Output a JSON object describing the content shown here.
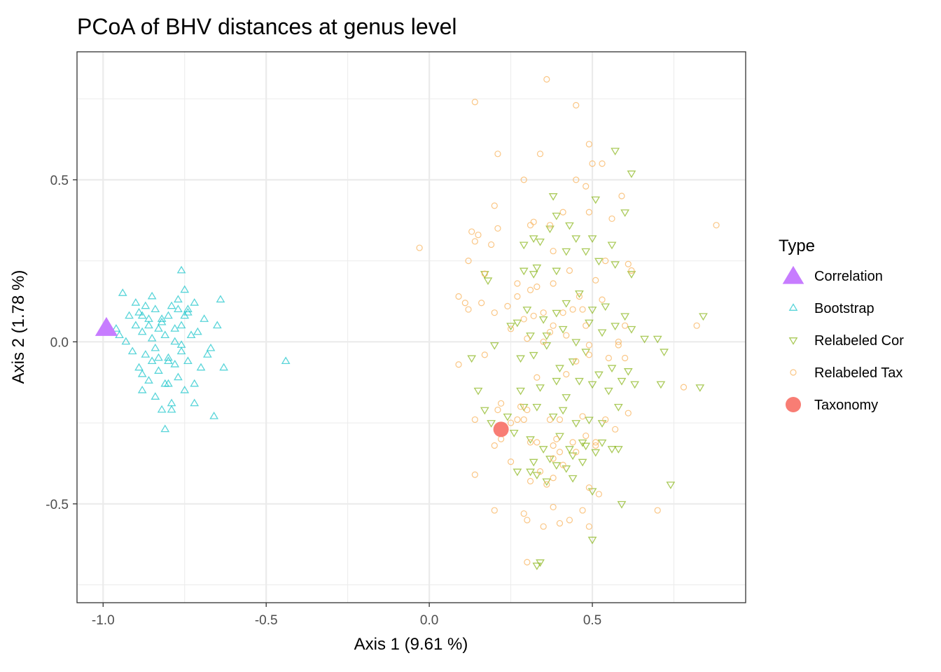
{
  "chart_data": {
    "type": "scatter",
    "title": "PCoA of BHV distances at genus level",
    "xlabel": "Axis 1 (9.61 %)",
    "ylabel": "Axis 2 (1.78 %)",
    "xlim": [
      -1.08,
      0.97
    ],
    "ylim": [
      -0.805,
      0.895
    ],
    "xticks": [
      -1.0,
      -0.5,
      0.0,
      0.5
    ],
    "xtick_labels": [
      "-1.0",
      "-0.5",
      "0.0",
      "0.5"
    ],
    "yticks": [
      -0.5,
      0.0,
      0.5
    ],
    "ytick_labels": [
      "-0.5",
      "0.0",
      "0.5"
    ],
    "grid": true,
    "legend": {
      "title": "Type",
      "position": "right"
    },
    "series": [
      {
        "name": "Correlation",
        "color": "#c77cff",
        "marker": "triangle-up-filled",
        "x": [
          -0.99
        ],
        "y": [
          0.04
        ]
      },
      {
        "name": "Bootstrap",
        "color": "#00bfc4",
        "marker": "triangle-up-open",
        "x": [
          -0.96,
          -0.95,
          -0.94,
          -0.93,
          -0.92,
          -0.91,
          -0.9,
          -0.9,
          -0.89,
          -0.89,
          -0.88,
          -0.88,
          -0.87,
          -0.87,
          -0.86,
          -0.86,
          -0.85,
          -0.85,
          -0.84,
          -0.84,
          -0.83,
          -0.83,
          -0.82,
          -0.82,
          -0.81,
          -0.81,
          -0.8,
          -0.8,
          -0.79,
          -0.79,
          -0.78,
          -0.78,
          -0.77,
          -0.77,
          -0.76,
          -0.76,
          -0.75,
          -0.75,
          -0.74,
          -0.74,
          -0.73,
          -0.72,
          -0.72,
          -0.71,
          -0.7,
          -0.69,
          -0.68,
          -0.67,
          -0.66,
          -0.65,
          -0.64,
          -0.63,
          -0.88,
          -0.86,
          -0.84,
          -0.82,
          -0.8,
          -0.78,
          -0.76,
          -0.74,
          -0.85,
          -0.8,
          -0.75,
          -0.72,
          -0.83,
          -0.79,
          -0.77,
          -0.88,
          -0.44,
          -0.76,
          -0.81
        ],
        "y": [
          0.04,
          0.02,
          0.15,
          0.0,
          0.08,
          -0.03,
          0.12,
          0.05,
          -0.08,
          0.09,
          -0.15,
          0.03,
          -0.04,
          0.11,
          -0.12,
          0.07,
          0.01,
          -0.06,
          0.1,
          -0.17,
          0.04,
          -0.09,
          0.06,
          -0.21,
          0.02,
          -0.13,
          0.08,
          -0.05,
          0.11,
          -0.19,
          0.0,
          -0.07,
          0.13,
          -0.11,
          0.05,
          -0.03,
          0.16,
          -0.15,
          0.09,
          -0.06,
          0.02,
          0.12,
          -0.13,
          0.03,
          -0.08,
          0.07,
          -0.04,
          -0.02,
          -0.23,
          0.05,
          0.13,
          -0.08,
          -0.1,
          0.05,
          -0.02,
          0.07,
          -0.06,
          0.04,
          -0.01,
          0.1,
          0.14,
          -0.13,
          0.08,
          -0.19,
          -0.05,
          -0.21,
          0.1,
          0.08,
          -0.06,
          0.22,
          -0.27
        ]
      },
      {
        "name": "Relabeled Cor",
        "color": "#7cae00",
        "marker": "triangle-down-open",
        "x": [
          0.57,
          0.62,
          0.51,
          0.38,
          0.6,
          0.43,
          0.39,
          0.37,
          0.32,
          0.45,
          0.5,
          0.56,
          0.29,
          0.34,
          0.17,
          0.18,
          0.29,
          0.33,
          0.32,
          0.39,
          0.42,
          0.48,
          0.52,
          0.57,
          0.62,
          0.27,
          0.3,
          0.35,
          0.39,
          0.42,
          0.46,
          0.5,
          0.54,
          0.6,
          0.66,
          0.72,
          0.84,
          0.25,
          0.31,
          0.36,
          0.41,
          0.45,
          0.49,
          0.53,
          0.57,
          0.62,
          0.7,
          0.13,
          0.2,
          0.28,
          0.32,
          0.36,
          0.4,
          0.44,
          0.48,
          0.52,
          0.56,
          0.61,
          0.15,
          0.28,
          0.34,
          0.39,
          0.42,
          0.46,
          0.5,
          0.55,
          0.59,
          0.63,
          0.71,
          0.83,
          0.17,
          0.24,
          0.29,
          0.33,
          0.38,
          0.41,
          0.45,
          0.49,
          0.53,
          0.58,
          0.19,
          0.26,
          0.31,
          0.35,
          0.4,
          0.43,
          0.47,
          0.51,
          0.56,
          0.32,
          0.37,
          0.42,
          0.47,
          0.27,
          0.33,
          0.39,
          0.44,
          0.48,
          0.53,
          0.58,
          0.31,
          0.36,
          0.44,
          0.5,
          0.59,
          0.74,
          0.34,
          0.5,
          0.33
        ],
        "y": [
          0.59,
          0.52,
          0.44,
          0.45,
          0.4,
          0.36,
          0.39,
          0.35,
          0.32,
          0.32,
          0.32,
          0.3,
          0.3,
          0.31,
          0.21,
          0.19,
          0.22,
          0.23,
          0.21,
          0.22,
          0.28,
          0.28,
          0.25,
          0.24,
          0.21,
          0.06,
          0.1,
          0.07,
          0.09,
          0.12,
          0.15,
          0.1,
          0.11,
          0.08,
          0.01,
          -0.03,
          0.08,
          0.05,
          0.02,
          -0.01,
          0.04,
          0.0,
          0.06,
          0.03,
          0.05,
          0.04,
          0.01,
          -0.05,
          -0.01,
          -0.05,
          -0.04,
          0.02,
          -0.08,
          -0.06,
          -0.03,
          -0.1,
          -0.08,
          -0.09,
          -0.15,
          -0.15,
          -0.14,
          -0.12,
          -0.17,
          -0.12,
          -0.13,
          -0.15,
          -0.12,
          -0.13,
          -0.13,
          -0.14,
          -0.21,
          -0.23,
          -0.2,
          -0.2,
          -0.23,
          -0.21,
          -0.25,
          -0.24,
          -0.25,
          -0.2,
          -0.25,
          -0.28,
          -0.3,
          -0.33,
          -0.29,
          -0.33,
          -0.31,
          -0.34,
          -0.33,
          -0.37,
          -0.36,
          -0.39,
          -0.37,
          -0.4,
          -0.41,
          -0.38,
          -0.35,
          -0.32,
          -0.31,
          -0.33,
          -0.4,
          -0.43,
          -0.42,
          -0.46,
          -0.5,
          -0.44,
          -0.68,
          -0.61,
          -0.69
        ]
      },
      {
        "name": "Relabeled Tax",
        "color": "#f8b35c",
        "marker": "circle-open",
        "x": [
          0.36,
          0.14,
          0.45,
          0.49,
          0.21,
          0.34,
          0.5,
          0.53,
          0.29,
          0.45,
          0.48,
          0.59,
          0.2,
          0.32,
          0.13,
          0.21,
          0.31,
          0.88,
          -0.03,
          0.14,
          0.19,
          0.37,
          0.41,
          0.49,
          0.56,
          0.38,
          0.61,
          0.15,
          0.12,
          0.51,
          0.17,
          0.27,
          0.31,
          0.54,
          0.43,
          0.62,
          0.27,
          0.38,
          0.33,
          0.09,
          0.11,
          0.2,
          0.24,
          0.35,
          0.44,
          0.16,
          0.12,
          0.29,
          0.32,
          0.41,
          0.47,
          0.53,
          0.46,
          0.6,
          0.82,
          0.3,
          0.38,
          0.42,
          0.48,
          0.25,
          0.37,
          0.49,
          0.58,
          0.35,
          0.09,
          0.17,
          0.49,
          0.6,
          0.45,
          0.58,
          0.78,
          0.22,
          0.33,
          0.42,
          0.27,
          0.29,
          0.4,
          0.54,
          0.61,
          0.37,
          0.25,
          0.14,
          0.21,
          0.28,
          0.3,
          0.55,
          0.33,
          0.44,
          0.39,
          0.47,
          0.51,
          0.57,
          0.38,
          0.48,
          0.51,
          0.4,
          0.14,
          0.2,
          0.34,
          0.45,
          0.31,
          0.29,
          0.38,
          0.38,
          0.52,
          0.7,
          0.38,
          0.47,
          0.3,
          0.35,
          0.43,
          0.2,
          0.25,
          0.36,
          0.41,
          0.49,
          0.3,
          0.22,
          0.31,
          0.4,
          0.49
        ],
        "y": [
          0.81,
          0.74,
          0.73,
          0.61,
          0.58,
          0.58,
          0.55,
          0.55,
          0.5,
          0.5,
          0.48,
          0.45,
          0.42,
          0.37,
          0.34,
          0.35,
          0.36,
          0.36,
          0.29,
          0.31,
          0.3,
          0.36,
          0.4,
          0.4,
          0.38,
          0.28,
          0.24,
          0.33,
          0.25,
          0.19,
          0.21,
          0.18,
          0.16,
          0.25,
          0.22,
          0.22,
          0.14,
          0.18,
          0.17,
          0.14,
          0.12,
          0.09,
          0.11,
          0.09,
          0.1,
          0.12,
          0.1,
          0.07,
          0.08,
          0.09,
          0.1,
          0.13,
          0.14,
          0.05,
          0.05,
          0.01,
          0.05,
          0.02,
          0.05,
          0.04,
          0.03,
          -0.01,
          0.0,
          0.0,
          -0.07,
          -0.04,
          -0.04,
          -0.05,
          -0.06,
          -0.01,
          -0.14,
          -0.19,
          -0.11,
          -0.1,
          -0.24,
          -0.24,
          -0.24,
          -0.24,
          -0.22,
          -0.24,
          -0.25,
          -0.24,
          -0.21,
          -0.2,
          -0.21,
          -0.05,
          -0.31,
          -0.31,
          -0.3,
          -0.23,
          -0.31,
          -0.27,
          -0.32,
          -0.29,
          -0.32,
          -0.34,
          -0.41,
          -0.32,
          -0.4,
          -0.34,
          -0.43,
          -0.53,
          -0.51,
          -0.42,
          -0.47,
          -0.52,
          -0.36,
          -0.52,
          -0.55,
          -0.57,
          -0.55,
          -0.52,
          -0.37,
          -0.44,
          -0.38,
          -0.45,
          -0.68,
          -0.3,
          -0.31,
          -0.56,
          -0.57
        ]
      },
      {
        "name": "Taxonomy",
        "color": "#f8766d",
        "marker": "circle-filled",
        "x": [
          0.22
        ],
        "y": [
          -0.27
        ]
      }
    ]
  }
}
